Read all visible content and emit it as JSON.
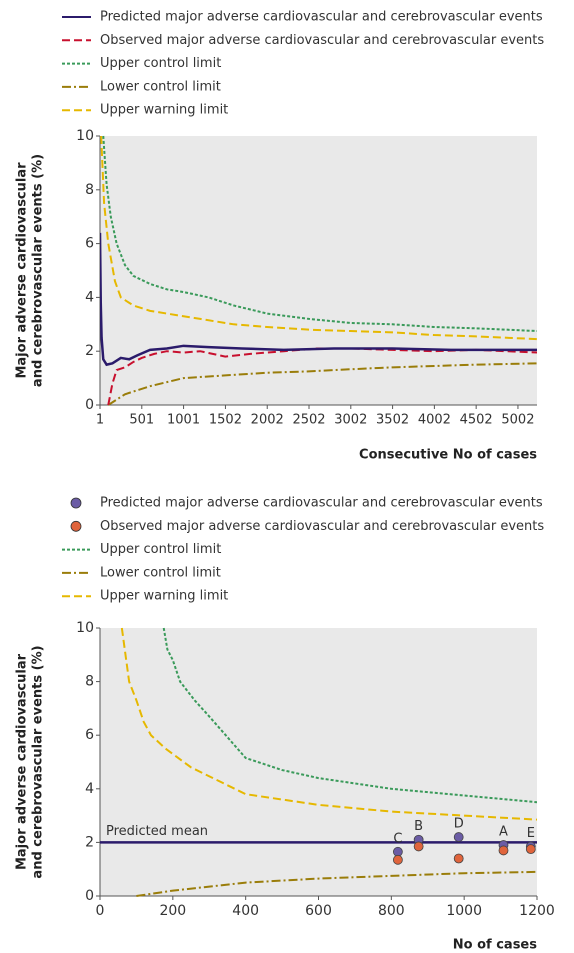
{
  "chart_data": [
    {
      "type": "line",
      "xlabel": "Consecutive No of cases",
      "ylabel": [
        "Major adverse cardiovascular",
        "and cerebrovascular events (%)"
      ],
      "xlim": [
        1,
        5230
      ],
      "ylim": [
        0,
        10
      ],
      "xticks": [
        1,
        501,
        1001,
        1502,
        2002,
        2502,
        3002,
        3502,
        4002,
        4502,
        5002
      ],
      "yticks": [
        0,
        2,
        4,
        6,
        8,
        10
      ],
      "grid": false,
      "series": [
        {
          "name": "Predicted major adverse cardiovascular and cerebrovascular events",
          "color": "#2b1b6b",
          "style": "solid",
          "x": [
            1,
            10,
            20,
            40,
            80,
            150,
            250,
            350,
            450,
            600,
            800,
            1000,
            1300,
            1700,
            2200,
            2800,
            3500,
            4200,
            4800,
            5230
          ],
          "values": [
            6.4,
            3.8,
            2.5,
            1.7,
            1.5,
            1.55,
            1.75,
            1.7,
            1.85,
            2.05,
            2.1,
            2.2,
            2.15,
            2.1,
            2.05,
            2.1,
            2.1,
            2.05,
            2.05,
            2.05
          ]
        },
        {
          "name": "Observed major adverse cardiovascular and cerebrovascular events",
          "color": "#c8102e",
          "style": "dashed",
          "x": [
            100,
            150,
            200,
            300,
            400,
            500,
            650,
            800,
            1000,
            1200,
            1500,
            1800,
            2200,
            2600,
            3000,
            3500,
            4000,
            4500,
            5230
          ],
          "values": [
            0,
            0.8,
            1.3,
            1.4,
            1.6,
            1.75,
            1.9,
            2.0,
            1.95,
            2.0,
            1.8,
            1.9,
            2.0,
            2.1,
            2.1,
            2.05,
            2.0,
            2.05,
            1.95
          ]
        },
        {
          "name": "Upper control limit",
          "color": "#3a9a5a",
          "style": "dotted",
          "x": [
            40,
            80,
            130,
            200,
            300,
            400,
            600,
            800,
            1000,
            1300,
            1600,
            2000,
            2500,
            3000,
            3500,
            4000,
            4500,
            5230
          ],
          "values": [
            10,
            8.2,
            7,
            6,
            5.2,
            4.8,
            4.5,
            4.3,
            4.2,
            4.0,
            3.7,
            3.4,
            3.2,
            3.05,
            3.0,
            2.9,
            2.85,
            2.75
          ]
        },
        {
          "name": "Lower control limit",
          "color": "#9a7d0a",
          "style": "dashdot",
          "x": [
            100,
            300,
            600,
            1000,
            1500,
            2000,
            2500,
            2800,
            3500,
            4000,
            4500,
            5230
          ],
          "values": [
            0,
            0.4,
            0.7,
            1.0,
            1.1,
            1.2,
            1.25,
            1.3,
            1.4,
            1.45,
            1.5,
            1.55
          ]
        },
        {
          "name": "Upper warning limit",
          "color": "#e6b800",
          "style": "dashed",
          "x": [
            15,
            50,
            100,
            180,
            250,
            400,
            600,
            800,
            1200,
            1600,
            2000,
            2500,
            3000,
            3500,
            4000,
            4500,
            5230
          ],
          "values": [
            10,
            7.5,
            6,
            4.6,
            4.0,
            3.7,
            3.5,
            3.4,
            3.2,
            3.0,
            2.9,
            2.8,
            2.75,
            2.7,
            2.6,
            2.55,
            2.45
          ]
        }
      ]
    },
    {
      "type": "scatter",
      "xlabel": "No of cases",
      "ylabel": [
        "Major adverse cardiovascular",
        "and cerebrovascular events (%)"
      ],
      "xlim": [
        0,
        1200
      ],
      "ylim": [
        0,
        10
      ],
      "xticks": [
        0,
        200,
        400,
        600,
        800,
        1000,
        1200
      ],
      "yticks": [
        0,
        2,
        4,
        6,
        8,
        10
      ],
      "grid": false,
      "mean": 2,
      "mean_label": "Predicted mean",
      "mean_color": "#2b1b6b",
      "labels": [
        "C",
        "B",
        "D",
        "A",
        "E"
      ],
      "series": [
        {
          "name": "Predicted major adverse cardiovascular and cerebrovascular events",
          "color": "#6b5ca5",
          "style": "dot",
          "x": [
            818,
            875,
            985,
            1108,
            1183
          ],
          "values": [
            1.65,
            2.1,
            2.2,
            1.9,
            1.85
          ]
        },
        {
          "name": "Observed major adverse cardiovascular and cerebrovascular events",
          "color": "#e0643c",
          "style": "dot",
          "x": [
            818,
            875,
            985,
            1108,
            1183
          ],
          "values": [
            1.35,
            1.85,
            1.4,
            1.7,
            1.75
          ]
        },
        {
          "name": "Upper control limit",
          "color": "#3a9a5a",
          "style": "dotted",
          "x": [
            175,
            185,
            200,
            220,
            260,
            300,
            400,
            500,
            600,
            800,
            1000,
            1200
          ],
          "values": [
            10,
            9.2,
            8.8,
            8,
            7.3,
            6.7,
            5.15,
            4.7,
            4.4,
            4.0,
            3.75,
            3.5
          ]
        },
        {
          "name": "Lower control limit",
          "color": "#9a7d0a",
          "style": "dashdot",
          "x": [
            100,
            200,
            300,
            400,
            600,
            800,
            1000,
            1200
          ],
          "values": [
            0,
            0.2,
            0.35,
            0.5,
            0.65,
            0.75,
            0.85,
            0.9
          ]
        },
        {
          "name": "Upper warning limit",
          "color": "#e6b800",
          "style": "dashed",
          "x": [
            60,
            80,
            100,
            120,
            140,
            180,
            250,
            400,
            600,
            800,
            1000,
            1200
          ],
          "values": [
            10,
            8,
            7.3,
            6.5,
            6,
            5.5,
            4.8,
            3.8,
            3.4,
            3.15,
            3.0,
            2.85
          ]
        }
      ]
    }
  ]
}
